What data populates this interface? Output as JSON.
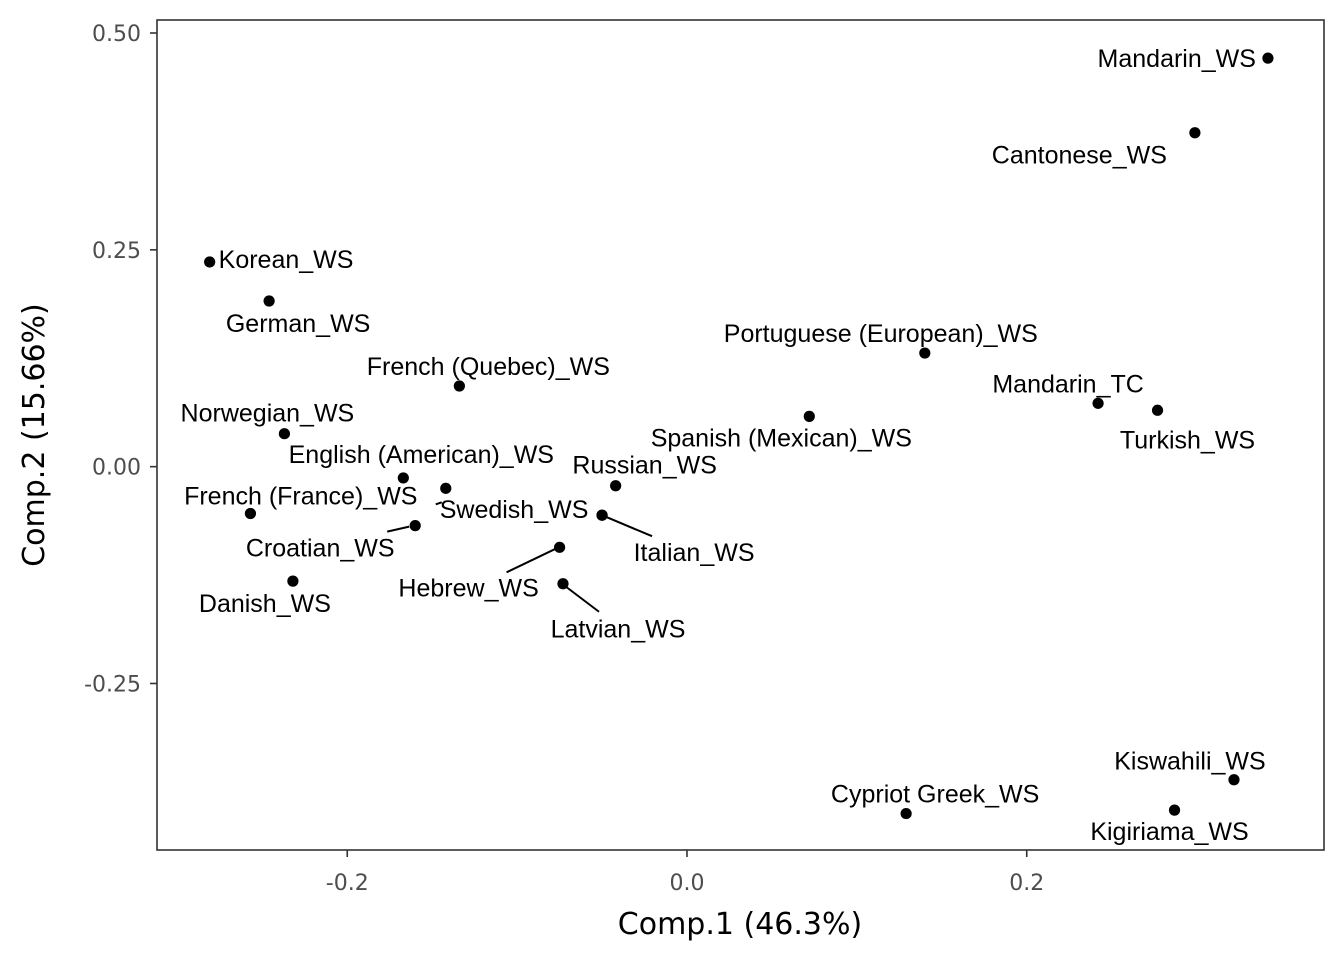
{
  "chart_data": {
    "type": "scatter",
    "xlabel": "Comp.1 (46.3%)",
    "ylabel": "Comp.2 (15.66%)",
    "xlim": [
      -0.312,
      0.375
    ],
    "ylim": [
      -0.442,
      0.515
    ],
    "x_ticks": [
      -0.2,
      0.0,
      0.2
    ],
    "x_tick_labels": [
      "-0.2",
      "0.0",
      "0.2"
    ],
    "y_ticks": [
      0.5,
      0.25,
      0.0,
      -0.25
    ],
    "y_tick_labels": [
      "0.50",
      "0.25",
      "0.00",
      "-0.25"
    ],
    "grid": false,
    "points": [
      {
        "label": "Mandarin_WS",
        "x": 0.342,
        "y": 0.471
      },
      {
        "label": "Cantonese_WS",
        "x": 0.299,
        "y": 0.385
      },
      {
        "label": "Korean_WS",
        "x": -0.281,
        "y": 0.236
      },
      {
        "label": "German_WS",
        "x": -0.246,
        "y": 0.191
      },
      {
        "label": "Portuguese (European)_WS",
        "x": 0.14,
        "y": 0.131
      },
      {
        "label": "French (Quebec)_WS",
        "x": -0.134,
        "y": 0.093
      },
      {
        "label": "Mandarin_TC",
        "x": 0.242,
        "y": 0.073
      },
      {
        "label": "Turkish_WS",
        "x": 0.277,
        "y": 0.065
      },
      {
        "label": "Spanish (Mexican)_WS",
        "x": 0.072,
        "y": 0.058
      },
      {
        "label": "Norwegian_WS",
        "x": -0.237,
        "y": 0.038
      },
      {
        "label": "English (American)_WS",
        "x": -0.167,
        "y": -0.013
      },
      {
        "label": "Russian_WS",
        "x": -0.042,
        "y": -0.022
      },
      {
        "label": "French (France)_WS",
        "x": -0.142,
        "y": -0.025
      },
      {
        "label": "Swedish_WS",
        "x": -0.05,
        "y": -0.056
      },
      {
        "label": "Italian_WS",
        "x": -0.05,
        "y": -0.056
      },
      {
        "label": "Hebrew_WS",
        "x": -0.075,
        "y": -0.093
      },
      {
        "label": "Croatian_WS",
        "x": -0.16,
        "y": -0.068
      },
      {
        "label": "Latvian_WS",
        "x": -0.073,
        "y": -0.135
      },
      {
        "label": "Danish_WS",
        "x": -0.232,
        "y": -0.132
      },
      {
        "label": "Kiswahili_WS",
        "x": 0.322,
        "y": -0.361
      },
      {
        "label": "Kigiriama_WS",
        "x": 0.287,
        "y": -0.396
      },
      {
        "label": "Cypriot Greek_WS",
        "x": 0.129,
        "y": -0.4
      },
      {
        "label": "",
        "x": -0.257,
        "y": -0.054
      }
    ]
  }
}
